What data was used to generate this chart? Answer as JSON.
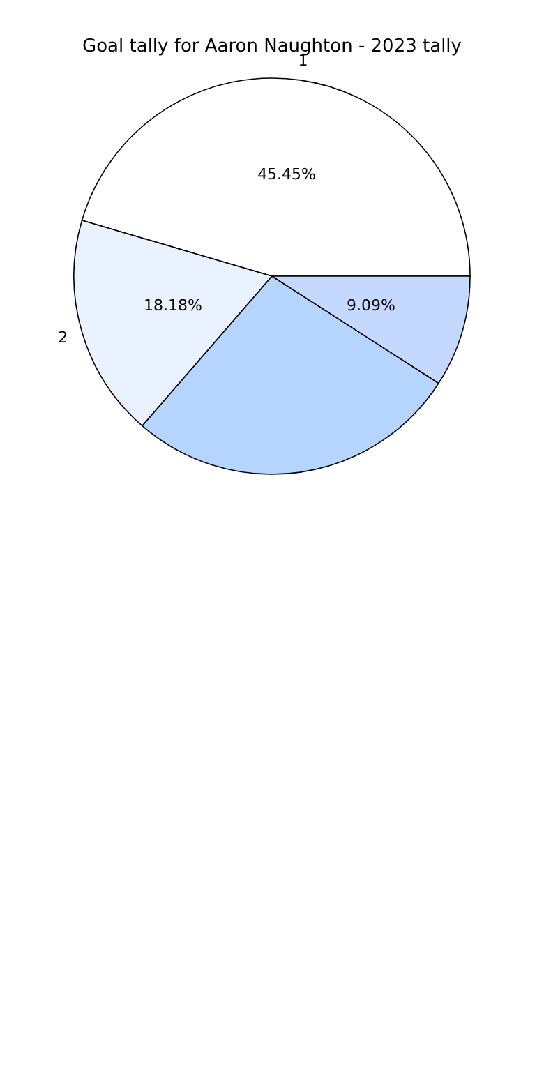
{
  "chart_data": {
    "type": "pie",
    "title": "Goal tally for Aaron Naughton - 2023 tally",
    "categories": [
      "1",
      "2",
      null,
      null
    ],
    "values": [
      45.45,
      18.18,
      27.27,
      9.09
    ],
    "colors": [
      "#ffffff",
      "#eaf1ff",
      "#b5d5ff",
      "#c5d8ff"
    ],
    "value_labels": [
      "45.45%",
      "18.18%",
      null,
      "9.09%"
    ],
    "legend": false
  }
}
